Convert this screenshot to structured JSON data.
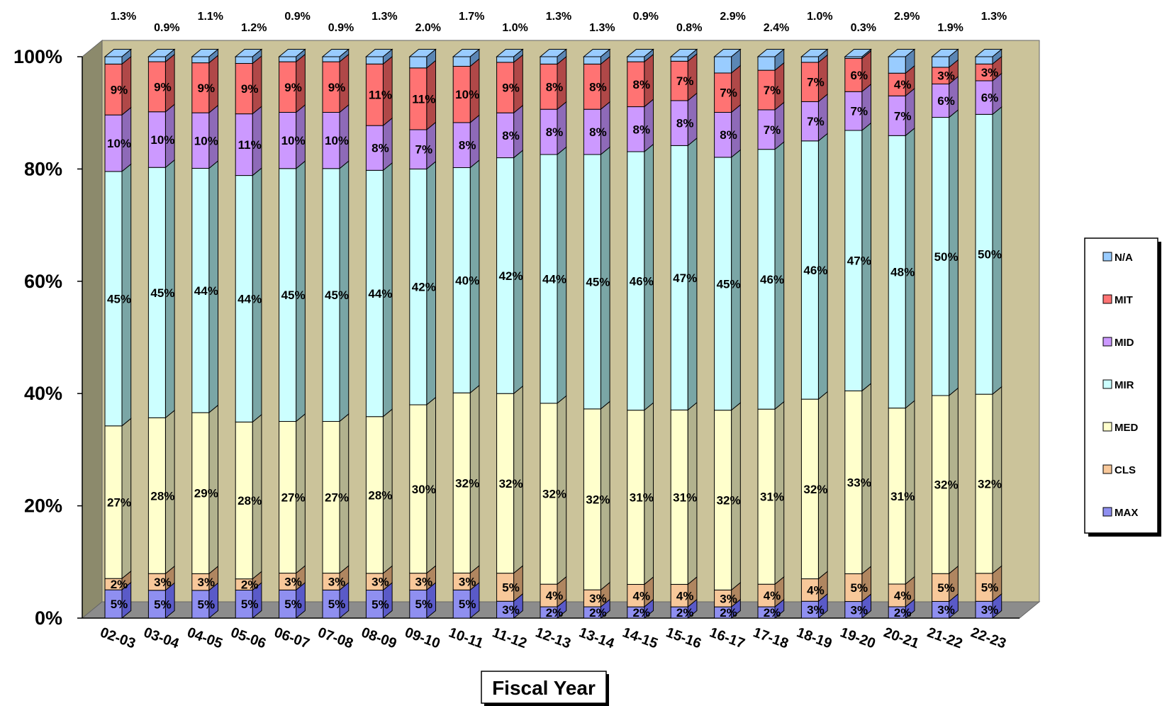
{
  "chart_data": {
    "type": "bar",
    "stacked": true,
    "percent_stacked": true,
    "three_d": true,
    "title": "",
    "xlabel": "Fiscal Year",
    "ylabel": "",
    "ylim": [
      0,
      100
    ],
    "y_ticks": [
      "0%",
      "20%",
      "40%",
      "60%",
      "80%",
      "100%"
    ],
    "grid": false,
    "legend_position": "right",
    "categories": [
      "02-03",
      "03-04",
      "04-05",
      "05-06",
      "06-07",
      "07-08",
      "08-09",
      "09-10",
      "10-11",
      "11-12",
      "12-13",
      "13-14",
      "14-15",
      "15-16",
      "16-17",
      "17-18",
      "18-19",
      "19-20",
      "20-21",
      "21-22",
      "22-23"
    ],
    "series": [
      {
        "name": "MAX",
        "color": "#8f8ff0",
        "side_color": "#5a5ac8",
        "values": [
          5,
          5,
          5,
          5,
          5,
          5,
          5,
          5,
          5,
          3,
          2,
          2,
          2,
          2,
          2,
          2,
          3,
          3,
          2,
          3,
          3
        ],
        "labels": [
          "5%",
          "5%",
          "5%",
          "5%",
          "5%",
          "5%",
          "5%",
          "5%",
          "5%",
          "3%",
          "2%",
          "2%",
          "2%",
          "2%",
          "2%",
          "2%",
          "3%",
          "3%",
          "2%",
          "3%",
          "3%"
        ]
      },
      {
        "name": "CLS",
        "color": "#f8c89a",
        "side_color": "#b08660",
        "values": [
          2,
          3,
          3,
          2,
          3,
          3,
          3,
          3,
          3,
          5,
          4,
          3,
          4,
          4,
          3,
          4,
          4,
          5,
          4,
          5,
          5
        ],
        "labels": [
          "2%",
          "3%",
          "3%",
          "2%",
          "3%",
          "3%",
          "3%",
          "3%",
          "3%",
          "5%",
          "4%",
          "3%",
          "4%",
          "4%",
          "3%",
          "4%",
          "4%",
          "5%",
          "4%",
          "5%",
          "5%"
        ]
      },
      {
        "name": "MED",
        "color": "#ffffcc",
        "side_color": "#b2b28e",
        "values": [
          27,
          28,
          29,
          28,
          27,
          27,
          28,
          30,
          32,
          32,
          32,
          32,
          31,
          31,
          32,
          31,
          32,
          33,
          31,
          32,
          32
        ],
        "labels": [
          "27%",
          "28%",
          "29%",
          "28%",
          "27%",
          "27%",
          "28%",
          "30%",
          "32%",
          "32%",
          "32%",
          "32%",
          "31%",
          "31%",
          "32%",
          "31%",
          "32%",
          "33%",
          "31%",
          "32%",
          "32%"
        ]
      },
      {
        "name": "MIR",
        "color": "#ccffff",
        "side_color": "#7aa6a6",
        "values": [
          45,
          45,
          44,
          44,
          45,
          45,
          44,
          42,
          40,
          42,
          44,
          45,
          46,
          47,
          45,
          46,
          46,
          47,
          48,
          50,
          50
        ],
        "labels": [
          "45%",
          "45%",
          "44%",
          "44%",
          "45%",
          "45%",
          "44%",
          "42%",
          "40%",
          "42%",
          "44%",
          "45%",
          "46%",
          "47%",
          "45%",
          "46%",
          "46%",
          "47%",
          "48%",
          "50%",
          "50%"
        ]
      },
      {
        "name": "MID",
        "color": "#cc99ff",
        "side_color": "#8e6ab8",
        "values": [
          10,
          10,
          10,
          11,
          10,
          10,
          8,
          7,
          8,
          8,
          8,
          8,
          8,
          8,
          8,
          7,
          7,
          7,
          7,
          6,
          6
        ],
        "labels": [
          "10%",
          "10%",
          "10%",
          "11%",
          "10%",
          "10%",
          "8%",
          "7%",
          "8%",
          "8%",
          "8%",
          "8%",
          "8%",
          "8%",
          "8%",
          "7%",
          "7%",
          "7%",
          "7%",
          "6%",
          "6%"
        ]
      },
      {
        "name": "MIT",
        "color": "#ff7373",
        "side_color": "#b04848",
        "values": [
          9,
          9,
          9,
          9,
          9,
          9,
          11,
          11,
          10,
          9,
          8,
          8,
          8,
          7,
          7,
          7,
          7,
          6,
          4,
          3,
          3
        ],
        "labels": [
          "9%",
          "9%",
          "9%",
          "9%",
          "9%",
          "9%",
          "11%",
          "11%",
          "10%",
          "9%",
          "8%",
          "8%",
          "8%",
          "7%",
          "7%",
          "7%",
          "7%",
          "6%",
          "4%",
          "3%",
          "3%"
        ]
      },
      {
        "name": "N/A",
        "color": "#99ccff",
        "side_color": "#5b86b4",
        "values": [
          1.3,
          0.9,
          1.1,
          1.2,
          0.9,
          0.9,
          1.3,
          2.0,
          1.7,
          1.0,
          1.3,
          1.3,
          0.9,
          0.8,
          2.9,
          2.4,
          1.0,
          0.3,
          2.9,
          1.9,
          1.3
        ],
        "labels": [
          "1.3%",
          "0.9%",
          "1.1%",
          "1.2%",
          "0.9%",
          "0.9%",
          "1.3%",
          "2.0%",
          "1.7%",
          "1.0%",
          "1.3%",
          "1.3%",
          "0.9%",
          "0.8%",
          "2.9%",
          "2.4%",
          "1.0%",
          "0.3%",
          "2.9%",
          "1.9%",
          "1.3%"
        ]
      }
    ],
    "legend_order": [
      "N/A",
      "MIT",
      "MID",
      "MIR",
      "MED",
      "CLS",
      "MAX"
    ],
    "wall_color": "#cbc39a",
    "floor_color": "#8c8c8c",
    "side_wall_color": "#8c8a6c"
  }
}
